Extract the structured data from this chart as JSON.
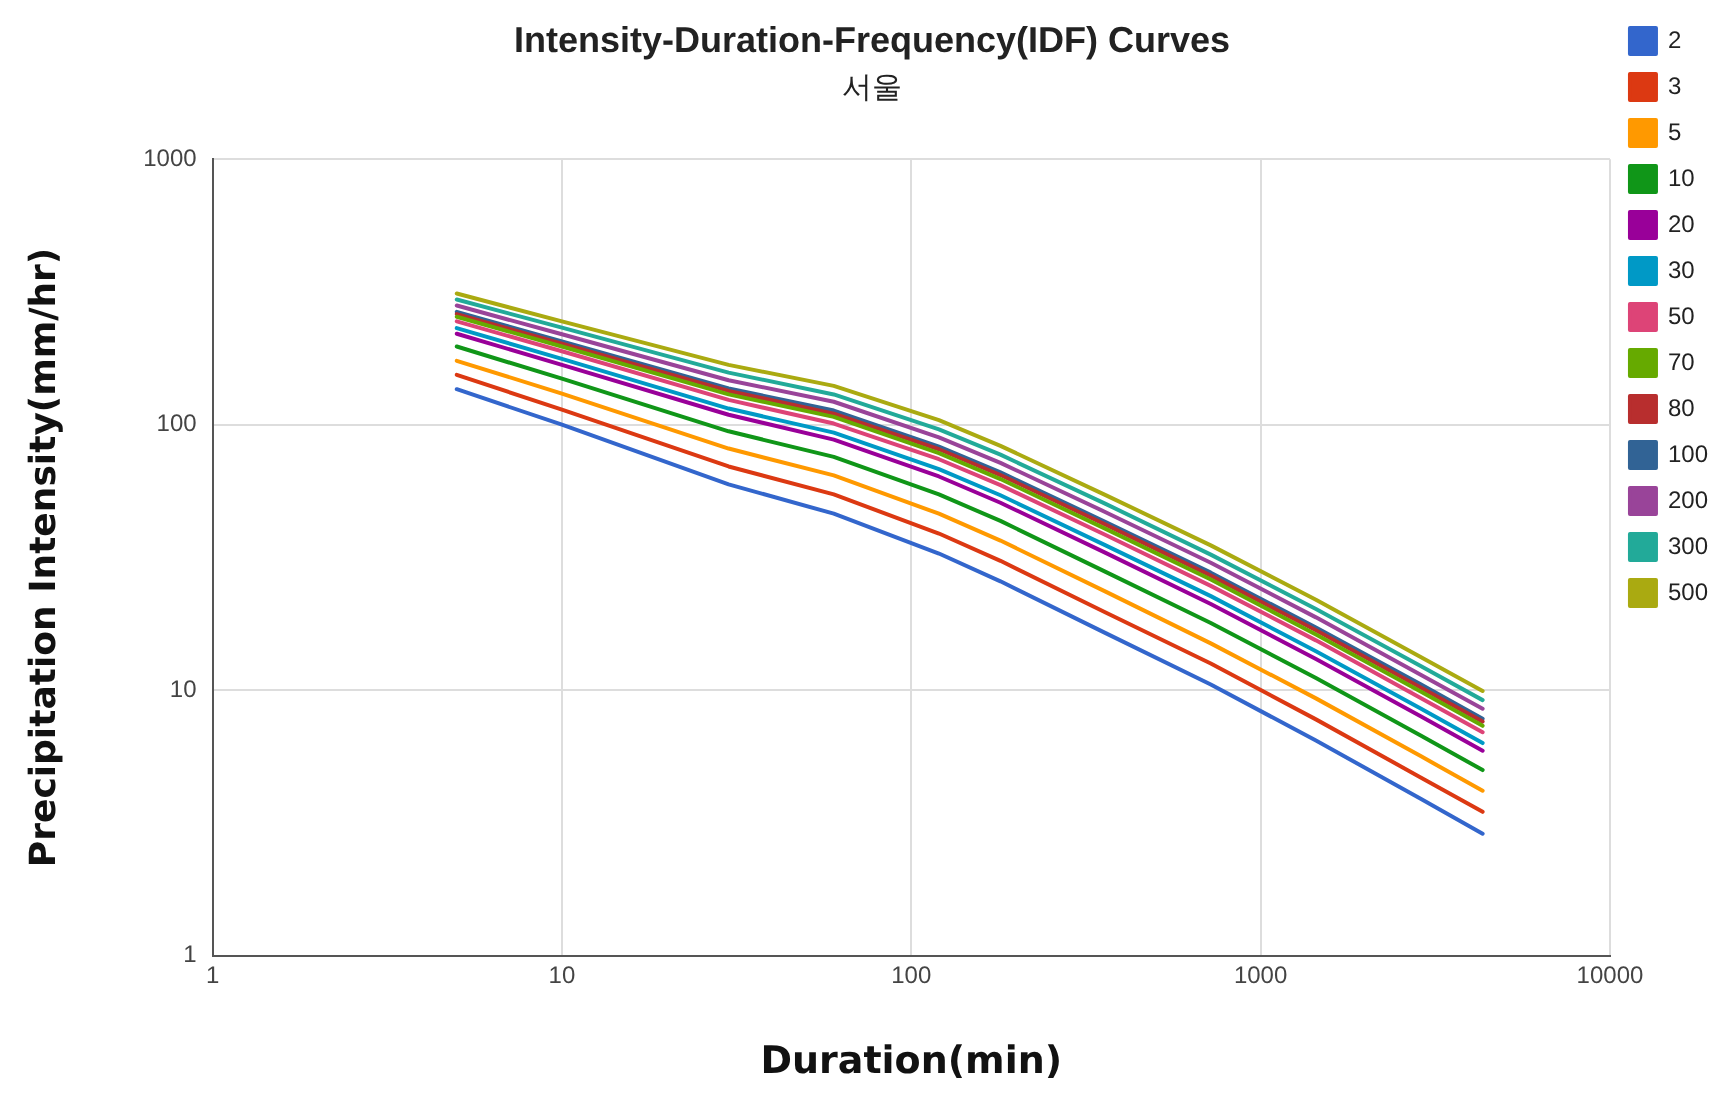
{
  "chart_data": {
    "type": "line",
    "title": "Intensity-Duration-Frequency(IDF) Curves",
    "subtitle": "서울",
    "xlabel": "Duration(min)",
    "ylabel": "Precipitation Intensity(mm/hr)",
    "x": [
      5,
      10,
      30,
      60,
      120,
      180,
      360,
      720,
      1440,
      2880,
      4320
    ],
    "xlim": [
      1,
      10000
    ],
    "xticks": [
      1,
      10,
      100,
      1000,
      10000
    ],
    "ylim": [
      1,
      1000
    ],
    "yticks": [
      1,
      10,
      100,
      1000
    ],
    "log": "xy",
    "grid": true,
    "legend": "right",
    "marker": "none",
    "line_style": "solid",
    "series": [
      {
        "name": "2",
        "color": "#3366cc",
        "values": [
          136,
          100,
          59.6,
          46.2,
          32.7,
          25.7,
          16.4,
          10.5,
          6.46,
          3.89,
          2.88
        ]
      },
      {
        "name": "3",
        "color": "#dc3912",
        "values": [
          154,
          114,
          69.6,
          54.6,
          38.9,
          30.7,
          19.6,
          12.6,
          7.76,
          4.68,
          3.48
        ]
      },
      {
        "name": "5",
        "color": "#ff9900",
        "values": [
          174,
          131,
          81.3,
          64.4,
          46.2,
          36.6,
          23.5,
          15.0,
          9.31,
          5.63,
          4.18
        ]
      },
      {
        "name": "10",
        "color": "#109618",
        "values": [
          197,
          149,
          94.4,
          75.6,
          54.6,
          43.4,
          27.9,
          17.9,
          11.1,
          6.73,
          5.0
        ]
      },
      {
        "name": "20",
        "color": "#990099",
        "values": [
          220,
          168,
          109,
          87.8,
          63.8,
          50.8,
          32.9,
          21.1,
          13.1,
          7.95,
          5.91
        ]
      },
      {
        "name": "30",
        "color": "#0099c6",
        "values": [
          231,
          177,
          115,
          93.3,
          68.0,
          54.2,
          35.1,
          22.6,
          14.0,
          8.51,
          6.32
        ]
      },
      {
        "name": "50",
        "color": "#dd4477",
        "values": [
          245,
          189,
          124,
          101,
          74.1,
          59.2,
          38.4,
          24.7,
          15.4,
          9.33,
          6.94
        ]
      },
      {
        "name": "70",
        "color": "#66aa00",
        "values": [
          255,
          197,
          130,
          107,
          78.1,
          62.4,
          40.5,
          26.1,
          16.2,
          9.86,
          7.34
        ]
      },
      {
        "name": "80",
        "color": "#b82e2e",
        "values": [
          261,
          202,
          134,
          110,
          80.8,
          64.6,
          42.0,
          27.0,
          16.8,
          10.2,
          7.61
        ]
      },
      {
        "name": "100",
        "color": "#316395",
        "values": [
          266,
          206,
          137,
          113,
          82.7,
          66.1,
          43.0,
          27.7,
          17.2,
          10.5,
          7.8
        ]
      },
      {
        "name": "200",
        "color": "#994499",
        "values": [
          281,
          219,
          147,
          122,
          89.6,
          71.8,
          46.8,
          30.2,
          18.8,
          11.4,
          8.51
        ]
      },
      {
        "name": "300",
        "color": "#22aa99",
        "values": [
          296,
          232,
          157,
          130,
          96.0,
          77.1,
          50.3,
          32.4,
          20.2,
          12.3,
          9.17
        ]
      },
      {
        "name": "500",
        "color": "#aaaa11",
        "values": [
          312,
          245,
          168,
          140,
          104,
          83.2,
          54.3,
          35.1,
          21.9,
          13.3,
          9.93
        ]
      }
    ]
  }
}
